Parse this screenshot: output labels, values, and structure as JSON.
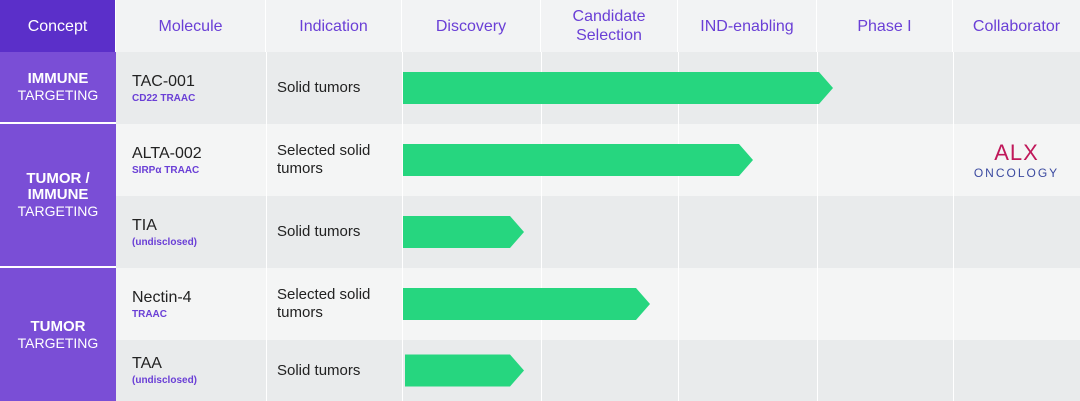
{
  "header": [
    "Concept",
    "Molecule",
    "Indication",
    "Discovery",
    "Candidate Selection",
    "IND-enabling",
    "Phase I",
    "Collaborator"
  ],
  "concepts": [
    {
      "lines": [
        "IMMUNE",
        "TARGETING"
      ]
    },
    {
      "lines": [
        "TUMOR /",
        "IMMUNE",
        "TARGETING"
      ]
    },
    {
      "lines": [
        "TUMOR",
        "TARGETING"
      ]
    }
  ],
  "rows": [
    {
      "molecule": "TAC-001",
      "detail": "CD22 TRAAC",
      "indication": "Solid tumors"
    },
    {
      "molecule": "ALTA-002",
      "detail": "SIRPα TRAAC",
      "indication": "Selected solid tumors",
      "collaborator": {
        "name": "ALX",
        "subname": "ONCOLOGY"
      }
    },
    {
      "molecule": "TIA",
      "detail": "(undisclosed)",
      "indication": "Solid tumors"
    },
    {
      "molecule": "Nectin-4",
      "detail": "TRAAC",
      "indication": "Selected solid tumors"
    },
    {
      "molecule": "TAA",
      "detail": "(undisclosed)",
      "indication": "Solid tumors"
    }
  ]
}
